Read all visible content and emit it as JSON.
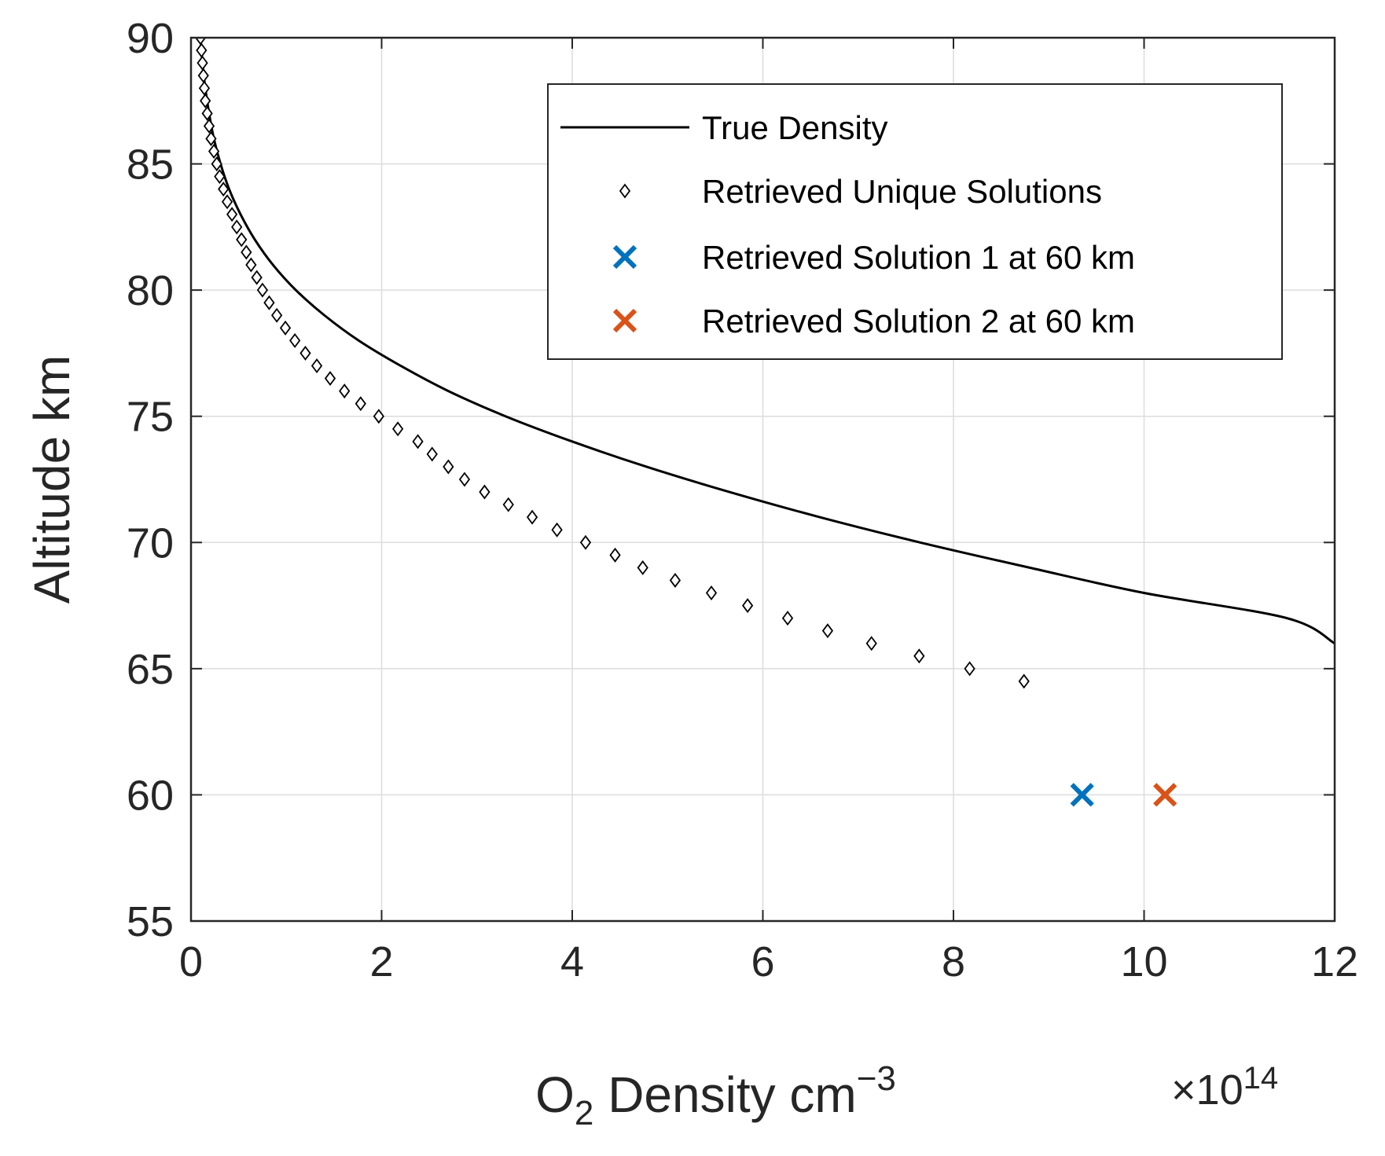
{
  "chart_data": {
    "type": "line",
    "title": "",
    "xlabel_main": "O",
    "xlabel_sub": "2",
    "xlabel_rest": " Density cm",
    "xlabel_sup": "−3",
    "x_exponent_prefix": "×10",
    "x_exponent_power": "14",
    "ylabel": "Altitude km",
    "xlim": [
      0,
      12
    ],
    "ylim": [
      55,
      90
    ],
    "x_ticks": [
      0,
      2,
      4,
      6,
      8,
      10,
      12
    ],
    "y_ticks": [
      55,
      60,
      65,
      70,
      75,
      80,
      85,
      90
    ],
    "x_tick_labels": [
      "0",
      "2",
      "4",
      "6",
      "8",
      "10",
      "12"
    ],
    "y_tick_labels": [
      "55",
      "60",
      "65",
      "70",
      "75",
      "80",
      "85",
      "90"
    ],
    "grid": true,
    "legend_position": "top-right",
    "series": [
      {
        "name": "True Density",
        "style": "line",
        "color": "#000000",
        "x": [
          0.1,
          0.12,
          0.15,
          0.19,
          0.24,
          0.31,
          0.4,
          0.52,
          0.67,
          0.86,
          1.1,
          1.4,
          1.76,
          2.2,
          2.7,
          3.3,
          4.0,
          4.78,
          5.65,
          6.6,
          7.65,
          8.8,
          10.0,
          11.5,
          12.0
        ],
        "y": [
          90,
          89,
          88,
          87,
          86,
          85,
          84,
          83,
          82,
          81,
          80,
          79,
          78,
          77,
          76,
          75,
          74,
          73,
          72,
          71,
          70,
          69,
          68,
          67,
          66
        ]
      },
      {
        "name": "Retrieved Unique Solutions",
        "style": "diamond",
        "color": "#000000",
        "x": [
          0.1,
          0.11,
          0.12,
          0.13,
          0.14,
          0.15,
          0.17,
          0.19,
          0.21,
          0.24,
          0.27,
          0.3,
          0.34,
          0.38,
          0.43,
          0.48,
          0.53,
          0.58,
          0.63,
          0.69,
          0.75,
          0.82,
          0.9,
          0.99,
          1.09,
          1.2,
          1.32,
          1.46,
          1.61,
          1.78,
          1.97,
          2.17,
          2.38,
          2.53,
          2.7,
          2.87,
          3.08,
          3.33,
          3.58,
          3.84,
          4.14,
          4.45,
          4.74,
          5.08,
          5.46,
          5.84,
          6.26,
          6.68,
          7.14,
          7.64,
          8.17,
          8.74
        ],
        "y": [
          90.0,
          89.5,
          89.0,
          88.5,
          88.0,
          87.5,
          87.0,
          86.5,
          86.0,
          85.5,
          85.0,
          84.5,
          84.0,
          83.5,
          83.0,
          82.5,
          82.0,
          81.5,
          81.0,
          80.5,
          80.0,
          79.5,
          79.0,
          78.5,
          78.0,
          77.5,
          77.0,
          76.5,
          76.0,
          75.5,
          75.0,
          74.5,
          74.0,
          73.5,
          73.0,
          72.5,
          72.0,
          71.5,
          71.0,
          70.5,
          70.0,
          69.5,
          69.0,
          68.5,
          68.0,
          67.5,
          67.0,
          66.5,
          66.0,
          65.5,
          65.0,
          64.5
        ]
      },
      {
        "name": "Retrieved Solution 1 at 60 km",
        "style": "x",
        "color": "#0072BD",
        "x": [
          9.35
        ],
        "y": [
          60
        ]
      },
      {
        "name": "Retrieved Solution 2 at 60 km",
        "style": "x",
        "color": "#D95319",
        "x": [
          10.22
        ],
        "y": [
          60
        ]
      }
    ]
  }
}
